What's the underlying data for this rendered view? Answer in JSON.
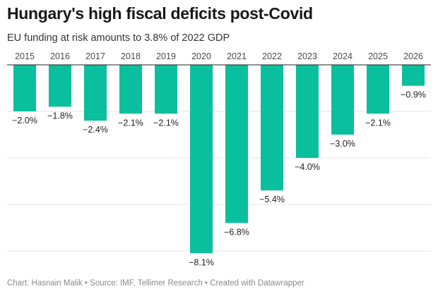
{
  "header": {
    "title": "Hungary's high fiscal deficits post-Covid",
    "subtitle": "EU funding at risk amounts to 3.8% of 2022 GDP"
  },
  "footer": {
    "credit": "Chart: Hasnain Malik",
    "separator": " • ",
    "source": "Source: IMF, Tellimer Research",
    "tool": "Created with Datawrapper"
  },
  "colors": {
    "bar": "#0ABF9E",
    "grid": "#e3e3e3",
    "axis": "#222222",
    "label": "#222222",
    "tick": "#4a4a4a"
  },
  "chart_data": {
    "type": "bar",
    "title": "Hungary's high fiscal deficits post-Covid",
    "subtitle": "EU funding at risk amounts to 3.8% of 2022 GDP",
    "categories": [
      "2015",
      "2016",
      "2017",
      "2018",
      "2019",
      "2020",
      "2021",
      "2022",
      "2023",
      "2024",
      "2025",
      "2026"
    ],
    "values": [
      -2.0,
      -1.8,
      -2.4,
      -2.1,
      -2.1,
      -8.1,
      -6.8,
      -5.4,
      -4.0,
      -3.0,
      -2.1,
      -0.9
    ],
    "value_labels": [
      "−2.0%",
      "−1.8%",
      "−2.4%",
      "−2.1%",
      "−2.1%",
      "−8.1%",
      "−6.8%",
      "−5.4%",
      "−4.0%",
      "−3.0%",
      "−2.1%",
      "−0.9%"
    ],
    "xlabel": "",
    "ylabel": "",
    "ylim": [
      -8,
      0
    ],
    "gridlines": [
      -2,
      -4,
      -6,
      -8
    ],
    "grid": true,
    "x_axis_position": "top",
    "legend": false
  }
}
